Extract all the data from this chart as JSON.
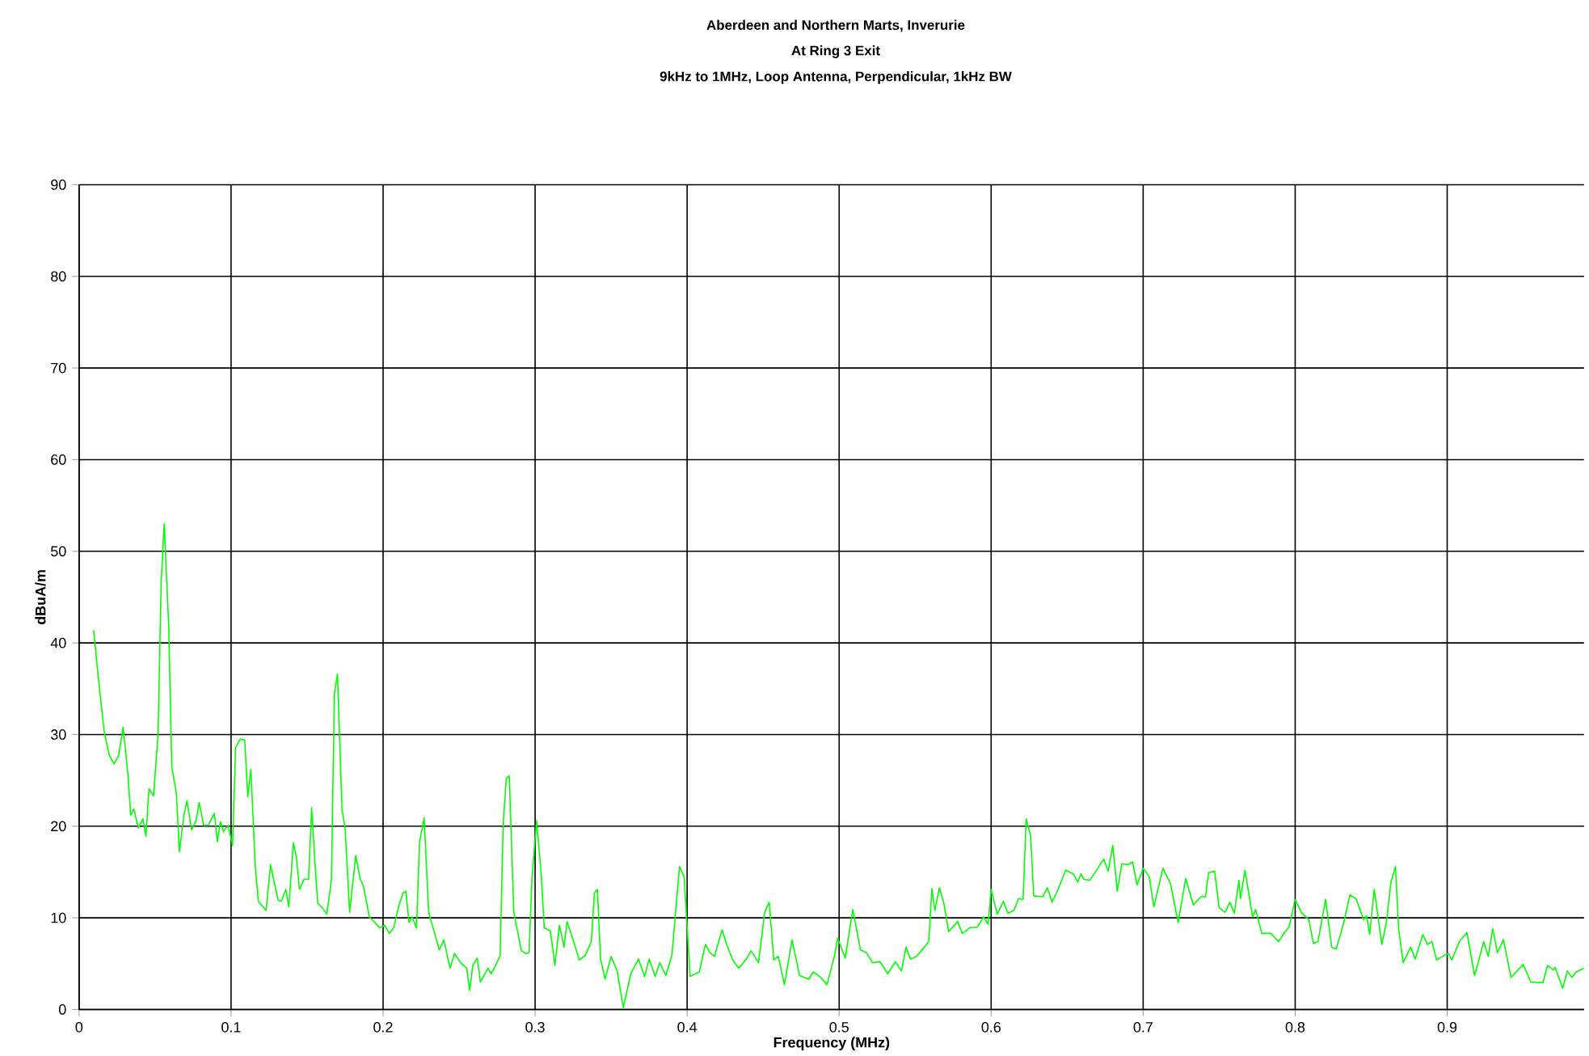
{
  "chart_data": {
    "type": "line",
    "title": "Aberdeen and Northern Marts, Inverurie",
    "subtitle": "At Ring 3 Exit",
    "annotations": [
      "9kHz to 1MHz, Loop Antenna, Perpendicular, 1kHz BW"
    ],
    "xlabel": "Frequency (MHz)",
    "ylabel": "dBuA/m",
    "xlim": [
      0,
      0.99
    ],
    "ylim": [
      0,
      90
    ],
    "xticks": [
      0,
      0.1,
      0.2,
      0.3,
      0.4,
      0.5,
      0.6,
      0.7,
      0.8,
      0.9
    ],
    "yticks": [
      0,
      10,
      20,
      30,
      40,
      50,
      60,
      70,
      80,
      90
    ],
    "grid": true,
    "marker": "none",
    "line_style": "solid",
    "series": [
      {
        "color": "#00ff00",
        "x": [
          0.0096,
          0.0125,
          0.0167,
          0.02,
          0.023,
          0.026,
          0.029,
          0.032,
          0.034,
          0.036,
          0.039,
          0.042,
          0.044,
          0.046,
          0.049,
          0.052,
          0.054,
          0.056,
          0.059,
          0.061,
          0.064,
          0.066,
          0.069,
          0.071,
          0.074,
          0.077,
          0.079,
          0.082,
          0.085,
          0.089,
          0.091,
          0.093,
          0.095,
          0.098,
          0.101,
          0.103,
          0.106,
          0.109,
          0.111,
          0.113,
          0.116,
          0.118,
          0.123,
          0.126,
          0.128,
          0.131,
          0.133,
          0.136,
          0.138,
          0.141,
          0.143,
          0.145,
          0.148,
          0.151,
          0.153,
          0.155,
          0.157,
          0.16,
          0.163,
          0.166,
          0.168,
          0.17,
          0.173,
          0.175,
          0.178,
          0.182,
          0.185,
          0.187,
          0.191,
          0.198,
          0.201,
          0.204,
          0.207,
          0.21,
          0.213,
          0.215,
          0.217,
          0.219,
          0.222,
          0.224,
          0.227,
          0.23,
          0.237,
          0.24,
          0.244,
          0.247,
          0.251,
          0.255,
          0.257,
          0.259,
          0.262,
          0.264,
          0.269,
          0.271,
          0.274,
          0.277,
          0.279,
          0.281,
          0.283,
          0.286,
          0.291,
          0.294,
          0.296,
          0.298,
          0.301,
          0.304,
          0.306,
          0.31,
          0.313,
          0.316,
          0.319,
          0.321,
          0.325,
          0.329,
          0.333,
          0.337,
          0.339,
          0.341,
          0.343,
          0.346,
          0.35,
          0.354,
          0.358,
          0.363,
          0.368,
          0.372,
          0.375,
          0.379,
          0.382,
          0.386,
          0.39,
          0.393,
          0.395,
          0.398,
          0.402,
          0.408,
          0.412,
          0.415,
          0.418,
          0.423,
          0.426,
          0.43,
          0.434,
          0.439,
          0.442,
          0.447,
          0.451,
          0.454,
          0.457,
          0.46,
          0.464,
          0.469,
          0.474,
          0.48,
          0.483,
          0.488,
          0.492,
          0.497,
          0.499,
          0.504,
          0.509,
          0.514,
          0.518,
          0.522,
          0.527,
          0.532,
          0.537,
          0.541,
          0.544,
          0.547,
          0.551,
          0.556,
          0.559,
          0.561,
          0.563,
          0.566,
          0.569,
          0.572,
          0.578,
          0.581,
          0.586,
          0.591,
          0.595,
          0.598,
          0.6,
          0.604,
          0.608,
          0.611,
          0.615,
          0.618,
          0.621,
          0.623,
          0.626,
          0.628,
          0.634,
          0.637,
          0.64,
          0.643,
          0.649,
          0.654,
          0.657,
          0.659,
          0.661,
          0.665,
          0.674,
          0.677,
          0.68,
          0.683,
          0.686,
          0.69,
          0.693,
          0.696,
          0.7,
          0.704,
          0.707,
          0.713,
          0.718,
          0.723,
          0.728,
          0.733,
          0.738,
          0.741,
          0.743,
          0.747,
          0.75,
          0.754,
          0.757,
          0.76,
          0.763,
          0.764,
          0.767,
          0.772,
          0.774,
          0.778,
          0.784,
          0.789,
          0.793,
          0.796,
          0.8,
          0.804,
          0.809,
          0.812,
          0.815,
          0.82,
          0.824,
          0.827,
          0.832,
          0.836,
          0.84,
          0.845,
          0.847,
          0.849,
          0.852,
          0.857,
          0.86,
          0.863,
          0.866,
          0.868,
          0.871,
          0.876,
          0.879,
          0.884,
          0.887,
          0.89,
          0.893,
          0.898,
          0.901,
          0.903,
          0.908,
          0.913,
          0.918,
          0.921,
          0.924,
          0.927,
          0.93,
          0.933,
          0.937,
          0.942,
          0.95,
          0.955,
          0.963,
          0.966,
          0.97,
          0.971,
          0.976,
          0.979,
          0.982,
          0.985,
          0.99
        ],
        "values": [
          41.4,
          36.5,
          30.1,
          27.7,
          26.8,
          27.7,
          30.8,
          25.9,
          21.2,
          21.9,
          19.8,
          20.8,
          18.9,
          24.1,
          23.3,
          30.1,
          46.5,
          53.0,
          41.8,
          26.5,
          23.6,
          17.2,
          21.2,
          22.8,
          19.6,
          20.6,
          22.6,
          20.1,
          20.1,
          21.4,
          18.3,
          20.5,
          19.4,
          20.1,
          17.9,
          28.6,
          29.5,
          29.4,
          23.2,
          26.2,
          15.4,
          11.8,
          10.8,
          15.8,
          14.2,
          11.9,
          11.8,
          13.1,
          11.2,
          18.2,
          16.6,
          13.1,
          14.2,
          14.2,
          22.0,
          16.5,
          11.6,
          11.1,
          10.4,
          14.1,
          34.5,
          36.6,
          21.8,
          19.8,
          10.6,
          16.8,
          14.2,
          13.5,
          10.1,
          8.9,
          9.2,
          8.3,
          8.9,
          11.1,
          12.7,
          12.9,
          9.5,
          10.1,
          8.9,
          18.3,
          20.9,
          10.6,
          6.5,
          7.6,
          4.5,
          6.1,
          5.1,
          4.5,
          2.1,
          4.8,
          5.6,
          3.0,
          4.5,
          3.9,
          4.8,
          5.9,
          20.1,
          25.2,
          25.5,
          10.6,
          6.4,
          6.1,
          6.2,
          14.5,
          20.6,
          14.8,
          8.9,
          8.6,
          4.8,
          9.2,
          6.8,
          9.6,
          7.6,
          5.4,
          5.9,
          7.4,
          12.7,
          13.1,
          5.6,
          3.3,
          5.8,
          4.2,
          0.2,
          3.9,
          5.5,
          3.6,
          5.5,
          3.6,
          5.1,
          3.7,
          5.9,
          11.8,
          15.6,
          14.5,
          3.6,
          4.1,
          7.1,
          6.2,
          5.8,
          8.7,
          7.1,
          5.4,
          4.5,
          5.5,
          6.4,
          5.1,
          10.6,
          11.7,
          5.4,
          5.8,
          2.7,
          7.6,
          3.7,
          3.3,
          4.1,
          3.5,
          2.7,
          5.9,
          7.8,
          5.6,
          10.9,
          6.5,
          6.2,
          5.1,
          5.2,
          3.9,
          5.2,
          4.2,
          6.8,
          5.5,
          5.8,
          6.8,
          7.4,
          13.2,
          10.8,
          13.3,
          11.5,
          8.5,
          9.6,
          8.3,
          8.9,
          9.0,
          10.1,
          9.3,
          13.1,
          10.4,
          11.8,
          10.5,
          10.8,
          12.1,
          12.0,
          20.8,
          18.9,
          12.4,
          12.3,
          13.3,
          11.7,
          12.7,
          15.2,
          14.8,
          13.9,
          14.8,
          14.2,
          14.1,
          16.4,
          15.1,
          17.9,
          12.9,
          15.9,
          15.8,
          16.1,
          13.6,
          15.4,
          14.5,
          11.2,
          15.4,
          13.7,
          9.5,
          14.3,
          11.4,
          12.3,
          12.3,
          14.9,
          15.1,
          11.1,
          10.6,
          11.7,
          10.5,
          14.1,
          12.1,
          15.2,
          10.1,
          10.9,
          8.3,
          8.3,
          7.4,
          8.4,
          9.0,
          12.0,
          10.6,
          9.8,
          7.2,
          7.4,
          12.0,
          6.8,
          6.6,
          9.5,
          12.5,
          12.1,
          9.8,
          10.2,
          8.2,
          13.1,
          7.1,
          9.5,
          13.9,
          15.6,
          8.9,
          5.1,
          6.8,
          5.5,
          8.2,
          7.1,
          7.4,
          5.4,
          5.9,
          6.1,
          5.4,
          7.4,
          8.4,
          3.7,
          5.5,
          7.4,
          5.8,
          8.8,
          6.2,
          7.6,
          3.5,
          4.9,
          3.0,
          2.9,
          4.8,
          4.3,
          4.6,
          2.3,
          4.2,
          3.5,
          4.1,
          4.5
        ]
      }
    ]
  }
}
